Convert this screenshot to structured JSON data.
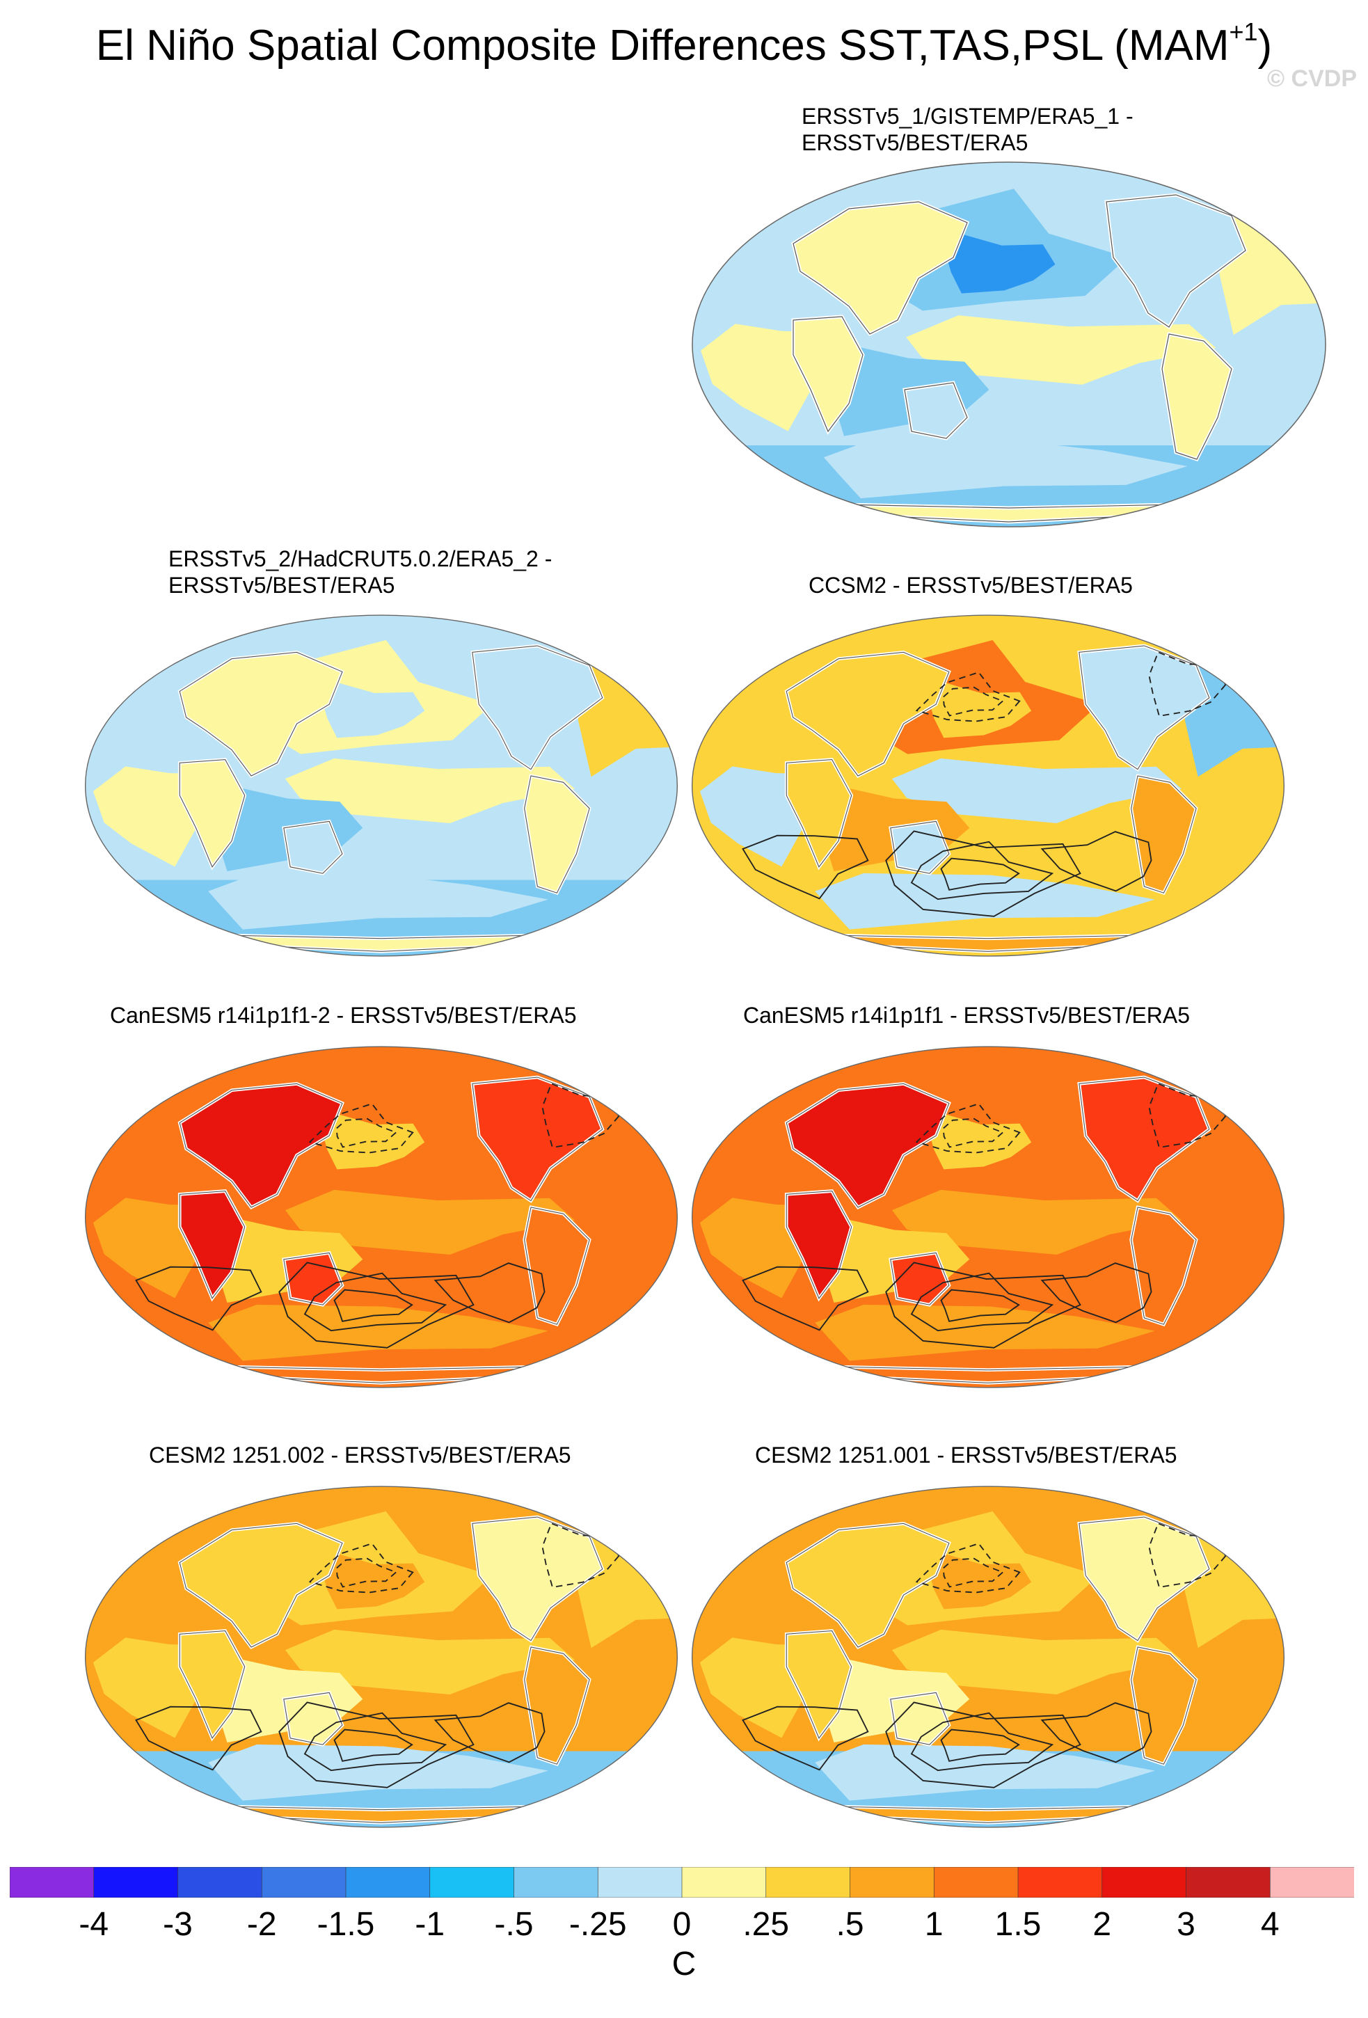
{
  "figure": {
    "title": "El Niño Spatial Composite Differences SST,TAS,PSL (MAM",
    "title_superscript": "+1",
    "title_suffix": ")",
    "watermark": "© CVDP"
  },
  "panels": [
    {
      "id": "p1",
      "title_line1": "ERSSTv5_1/GISTEMP/ERA5_1 -",
      "title_line2": "ERSSTv5/BEST/ERA5",
      "field": {
        "tropics": "mild-cool",
        "north_pacific": "cool",
        "north_atlantic": "neutral",
        "southern_ocean": "cool",
        "land": "near-zero"
      },
      "psl_contours": false
    },
    {
      "id": "p2",
      "title_line1": "ERSSTv5_2/HadCRUT5.0.2/ERA5_2 -",
      "title_line2": "ERSSTv5/BEST/ERA5",
      "field": {
        "tropics": "mild-cool",
        "north_pacific": "neutral",
        "north_atlantic": "mild-warm",
        "southern_ocean": "cool",
        "land": "near-zero"
      },
      "psl_contours": false
    },
    {
      "id": "p3",
      "title_line1": "CCSM2 - ERSSTv5/BEST/ERA5",
      "title_line2": "",
      "field": {
        "tropics": "mixed",
        "north_pacific": "warm",
        "north_atlantic": "cool",
        "southern_ocean": "mixed",
        "land": "mixed"
      },
      "psl_contours": true
    },
    {
      "id": "p4",
      "title_line1": "CanESM5 r14i1p1f1-2 - ERSSTv5/BEST/ERA5",
      "title_line2": "",
      "field": {
        "tropics": "warm",
        "north_pacific": "warm",
        "north_atlantic": "warm",
        "southern_ocean": "warm",
        "land": "very-warm"
      },
      "psl_contours": true
    },
    {
      "id": "p5",
      "title_line1": "CanESM5 r14i1p1f1 - ERSSTv5/BEST/ERA5",
      "title_line2": "",
      "field": {
        "tropics": "warm",
        "north_pacific": "warm",
        "north_atlantic": "warm",
        "southern_ocean": "warm",
        "land": "very-warm"
      },
      "psl_contours": true
    },
    {
      "id": "p6",
      "title_line1": "CESM2 1251.002 - ERSSTv5/BEST/ERA5",
      "title_line2": "",
      "field": {
        "tropics": "warm-tongue",
        "north_pacific": "mixed",
        "north_atlantic": "mild-warm",
        "southern_ocean": "cool",
        "land": "mild-warm"
      },
      "psl_contours": true
    },
    {
      "id": "p7",
      "title_line1": "CESM2 1251.001 - ERSSTv5/BEST/ERA5",
      "title_line2": "",
      "field": {
        "tropics": "warm-tongue",
        "north_pacific": "mixed",
        "north_atlantic": "mild-warm",
        "southern_ocean": "cool",
        "land": "mild-warm"
      },
      "psl_contours": true
    }
  ],
  "colorbar": {
    "colors": [
      "#8a2be2",
      "#1414ff",
      "#2a4fe6",
      "#3a78e8",
      "#2a96f0",
      "#18c0f5",
      "#7ccaf2",
      "#bde3f6",
      "#fdf8a0",
      "#fdd33c",
      "#fca51e",
      "#fa7619",
      "#fc3a14",
      "#e8140e",
      "#c81e1e",
      "#fcb8b8"
    ],
    "labels": [
      "-4",
      "-3",
      "-2",
      "-1.5",
      "-1",
      "-.5",
      "-.25",
      "0",
      ".25",
      ".5",
      "1",
      "1.5",
      "2",
      "3",
      "4"
    ],
    "unit": "C"
  }
}
